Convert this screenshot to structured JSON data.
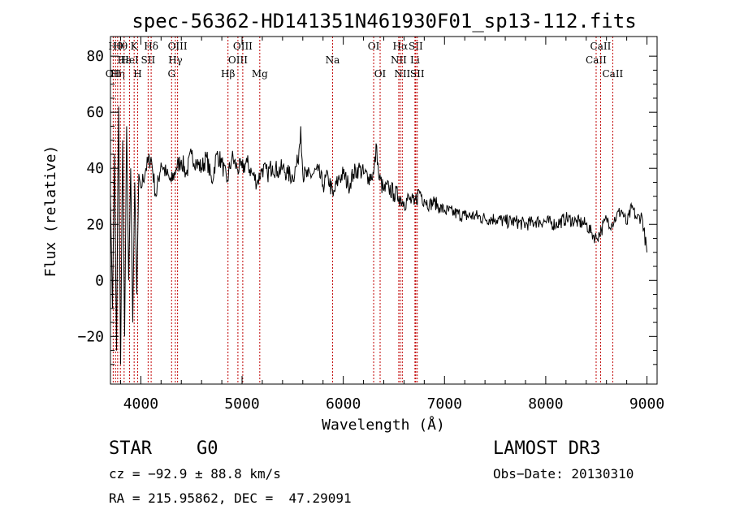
{
  "chart_data": {
    "type": "line",
    "title": "spec-56362-HD141351N461930F01_sp13-112.fits",
    "xlabel": "Wavelength (Å)",
    "ylabel": "Flux (relative)",
    "xlim": [
      3700,
      9100
    ],
    "ylim": [
      -37,
      87
    ],
    "x_ticks": [
      4000,
      5000,
      6000,
      7000,
      8000,
      9000
    ],
    "y_ticks": [
      -20,
      0,
      20,
      40,
      60,
      80
    ],
    "y_tick_labels": [
      "−20",
      "0",
      "20",
      "40",
      "60",
      "80"
    ],
    "series": [
      {
        "name": "spectrum",
        "x": [
          3700,
          3720,
          3740,
          3760,
          3780,
          3800,
          3820,
          3840,
          3860,
          3880,
          3900,
          3920,
          3940,
          3960,
          3980,
          4000,
          4050,
          4100,
          4150,
          4200,
          4250,
          4300,
          4350,
          4400,
          4450,
          4500,
          4550,
          4600,
          4650,
          4700,
          4750,
          4800,
          4850,
          4900,
          4950,
          5000,
          5050,
          5100,
          5150,
          5200,
          5250,
          5300,
          5350,
          5400,
          5450,
          5500,
          5550,
          5580,
          5600,
          5650,
          5700,
          5750,
          5800,
          5850,
          5900,
          5950,
          6000,
          6050,
          6100,
          6150,
          6200,
          6250,
          6300,
          6330,
          6350,
          6400,
          6450,
          6500,
          6550,
          6600,
          6650,
          6700,
          6750,
          6800,
          6850,
          6900,
          6950,
          7000,
          7100,
          7200,
          7300,
          7400,
          7500,
          7600,
          7700,
          7800,
          7900,
          8000,
          8100,
          8200,
          8300,
          8400,
          8450,
          8500,
          8550,
          8600,
          8650,
          8700,
          8750,
          8800,
          8850,
          8900,
          8950,
          9000
        ],
        "values": [
          30,
          -10,
          45,
          -25,
          62,
          -30,
          50,
          -20,
          55,
          0,
          40,
          -15,
          35,
          -5,
          38,
          33,
          40,
          44,
          30,
          42,
          38,
          35,
          40,
          43,
          38,
          45,
          42,
          40,
          44,
          35,
          45,
          42,
          35,
          44,
          40,
          40,
          42,
          38,
          35,
          40,
          38,
          41,
          39,
          40,
          38,
          37,
          42,
          55,
          38,
          37,
          38,
          39,
          34,
          37,
          30,
          36,
          38,
          34,
          38,
          40,
          38,
          37,
          38,
          48,
          37,
          32,
          33,
          31,
          30,
          28,
          29,
          27,
          32,
          29,
          27,
          28,
          26,
          25,
          24,
          23,
          23,
          22,
          22,
          21,
          21,
          20,
          21,
          21,
          20,
          22,
          21,
          20,
          17,
          15,
          18,
          22,
          20,
          23,
          25,
          20,
          26,
          22,
          23,
          10
        ]
      }
    ],
    "lines": [
      {
        "w": 3727,
        "label": "OII",
        "row": 3
      },
      {
        "w": 3750,
        "label": "Hθ",
        "row": 1
      },
      {
        "w": 3771,
        "label": "Hη",
        "row": 3
      },
      {
        "w": 3798,
        "label": "Hθ",
        "row": 1
      },
      {
        "w": 3835,
        "label": "Hε",
        "row": 2
      },
      {
        "w": 3889,
        "label": "HeI",
        "row": 2
      },
      {
        "w": 3934,
        "label": "K",
        "row": 1
      },
      {
        "w": 3969,
        "label": "H",
        "row": 3
      },
      {
        "w": 4072,
        "label": "SII",
        "row": 2
      },
      {
        "w": 4102,
        "label": "Hδ",
        "row": 1
      },
      {
        "w": 4304,
        "label": "G",
        "row": 3
      },
      {
        "w": 4341,
        "label": "Hγ",
        "row": 2
      },
      {
        "w": 4363,
        "label": "OIII",
        "row": 1
      },
      {
        "w": 4861,
        "label": "Hβ",
        "row": 3
      },
      {
        "w": 4959,
        "label": "OIII",
        "row": 2
      },
      {
        "w": 5007,
        "label": "OIII",
        "row": 1
      },
      {
        "w": 5175,
        "label": "Mg",
        "row": 3
      },
      {
        "w": 5894,
        "label": "Na",
        "row": 2
      },
      {
        "w": 6300,
        "label": "OI",
        "row": 1
      },
      {
        "w": 6364,
        "label": "OI",
        "row": 3
      },
      {
        "w": 6548,
        "label": "NII",
        "row": 2
      },
      {
        "w": 6563,
        "label": "Hα",
        "row": 1
      },
      {
        "w": 6583,
        "label": "NII",
        "row": 3
      },
      {
        "w": 6708,
        "label": "Li",
        "row": 2
      },
      {
        "w": 6716,
        "label": "SII",
        "row": 1
      },
      {
        "w": 6731,
        "label": "SII",
        "row": 3
      },
      {
        "w": 8498,
        "label": "CaII",
        "row": 2
      },
      {
        "w": 8542,
        "label": "CaII",
        "row": 1
      },
      {
        "w": 8662,
        "label": "CaII",
        "row": 3
      }
    ]
  },
  "info": {
    "object_class": "STAR",
    "subclass": "G0",
    "survey": "LAMOST DR3",
    "cz": "cz = −92.9 ± 88.8 km/s",
    "obs_date": "Obs−Date: 20130310",
    "radec": "RA = 215.95862, DEC =  47.29091"
  }
}
